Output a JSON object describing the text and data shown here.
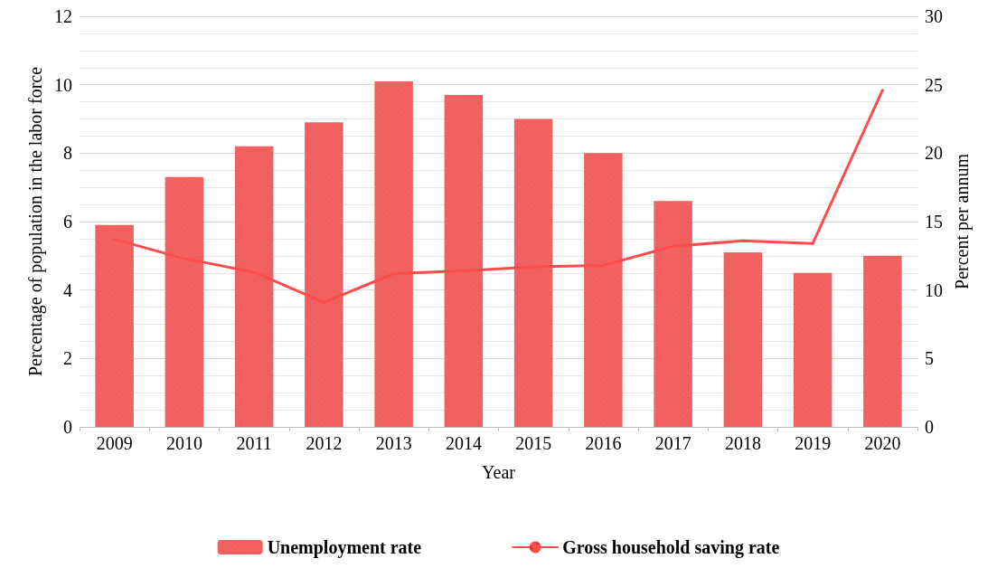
{
  "chart_data": {
    "type": "bar",
    "xlabel": "Year",
    "ylabel": "Percentage of population in the labor force",
    "y2label": "Percent per annum",
    "categories": [
      "2009",
      "2010",
      "2011",
      "2012",
      "2013",
      "2014",
      "2015",
      "2016",
      "2017",
      "2018",
      "2019",
      "2020"
    ],
    "series": [
      {
        "name": "Unemployment rate",
        "color": "#f05a5a",
        "values": [
          5.9,
          7.3,
          8.2,
          8.9,
          10.1,
          9.7,
          9.0,
          8.0,
          6.6,
          5.1,
          4.5,
          5.0
        ]
      },
      {
        "name": "Gross household saving rate",
        "type": "line",
        "axis": "y2",
        "color": "#ff4b4b",
        "values": [
          13.7,
          12.3,
          11.3,
          9.1,
          11.2,
          11.4,
          11.7,
          11.8,
          13.2,
          13.6,
          13.4,
          24.6
        ]
      }
    ],
    "ylim": [
      0,
      12
    ],
    "yticks": [
      0,
      2,
      4,
      6,
      8,
      10,
      12
    ],
    "y2lim": [
      0,
      30
    ],
    "y2ticks": [
      0,
      5,
      10,
      15,
      20,
      25,
      30
    ],
    "grid": "y",
    "legend": "bottom",
    "marker": "none",
    "line_style": "solid"
  }
}
